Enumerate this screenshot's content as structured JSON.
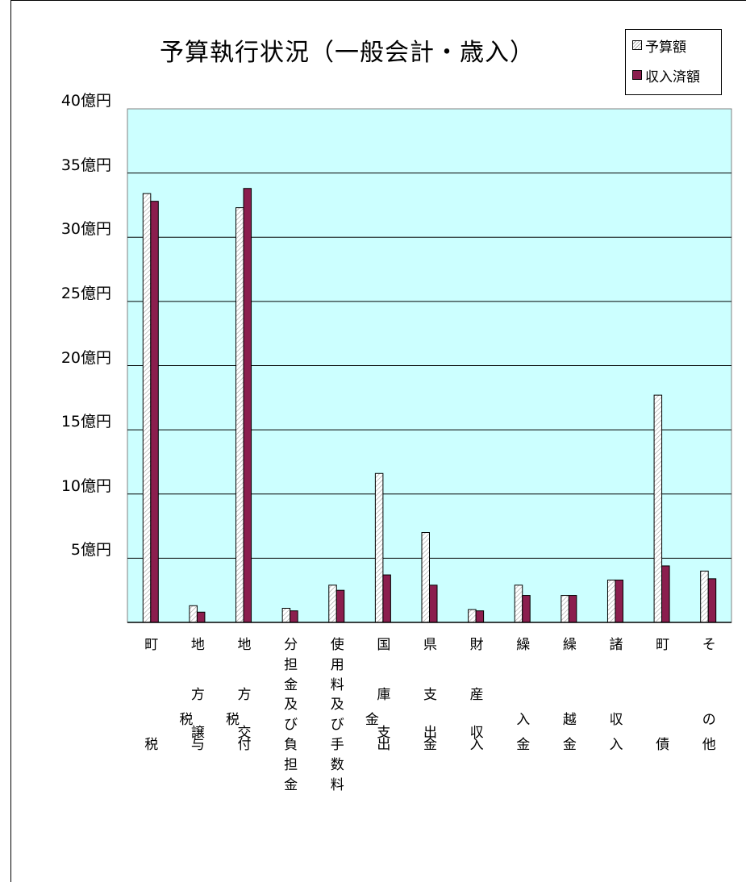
{
  "chart_data": {
    "type": "bar",
    "title": "予算執行状況（一般会計・歳入）",
    "legend": {
      "placement": "top-right"
    },
    "ylim": [
      0,
      40
    ],
    "yticks": [
      5,
      10,
      15,
      20,
      25,
      30,
      35,
      40
    ],
    "ytick_labels": [
      "5億円",
      "10億円",
      "15億円",
      "20億円",
      "25億円",
      "30億円",
      "35億円",
      "40億円"
    ],
    "grid": true,
    "colors": {
      "plot_bg": "#ccffff",
      "series0_hatch": "#a0a0a0",
      "series1_fill": "#8b1e4e"
    },
    "categories": [
      "町税",
      "地方譲与税",
      "地方交付税",
      "分担金及び負担金",
      "使用料及び手数料",
      "国庫支出金",
      "県支出金",
      "財産収入",
      "繰入金",
      "繰越金",
      "諸収入",
      "町債",
      "その他"
    ],
    "category_labels": [
      [
        [
          "町",
          0,
          0
        ],
        [
          "税",
          0,
          4
        ]
      ],
      [
        [
          "地",
          0,
          0
        ],
        [
          "方",
          0,
          2
        ],
        [
          "税",
          -0.5,
          3
        ],
        [
          "譲",
          0,
          3.5
        ],
        [
          "与",
          0,
          4
        ]
      ],
      [
        [
          "地",
          0,
          0
        ],
        [
          "方",
          0,
          2
        ],
        [
          "税",
          -0.5,
          3
        ],
        [
          "交",
          0,
          3.5
        ],
        [
          "付",
          0,
          4
        ]
      ],
      [
        [
          "分",
          0,
          0
        ],
        [
          "担",
          0,
          0.8
        ],
        [
          "金",
          0,
          1.6
        ],
        [
          "及",
          0,
          2.4
        ],
        [
          "び",
          0,
          3.2
        ],
        [
          "負",
          0,
          4
        ],
        [
          "担",
          0,
          4.8
        ],
        [
          "金",
          0,
          5.6
        ]
      ],
      [
        [
          "使",
          0,
          0
        ],
        [
          "用",
          0,
          0.8
        ],
        [
          "料",
          0,
          1.6
        ],
        [
          "及",
          0,
          2.4
        ],
        [
          "び",
          0,
          3.2
        ],
        [
          "手",
          0,
          4
        ],
        [
          "数",
          0,
          4.8
        ],
        [
          "料",
          0,
          5.6
        ]
      ],
      [
        [
          "国",
          0,
          0
        ],
        [
          "庫",
          0,
          2
        ],
        [
          "金",
          -0.5,
          3
        ],
        [
          "支",
          0,
          3.5
        ],
        [
          "出",
          0,
          4
        ]
      ],
      [
        [
          "県",
          0,
          0
        ],
        [
          "支",
          0,
          2
        ],
        [
          "出",
          0,
          3.5
        ],
        [
          "金",
          0,
          4
        ]
      ],
      [
        [
          "財",
          0,
          0
        ],
        [
          "産",
          0,
          2
        ],
        [
          "収",
          0,
          3.5
        ],
        [
          "入",
          0,
          4
        ]
      ],
      [
        [
          "繰",
          0,
          0
        ],
        [
          "入",
          0,
          3
        ],
        [
          "金",
          0,
          4
        ]
      ],
      [
        [
          "繰",
          0,
          0
        ],
        [
          "越",
          0,
          3
        ],
        [
          "金",
          0,
          4
        ]
      ],
      [
        [
          "諸",
          0,
          0
        ],
        [
          "収",
          0,
          3
        ],
        [
          "入",
          0,
          4
        ]
      ],
      [
        [
          "町",
          0,
          0
        ],
        [
          "債",
          0,
          4
        ]
      ],
      [
        [
          "そ",
          0,
          0
        ],
        [
          "の",
          0,
          3
        ],
        [
          "他",
          0,
          4
        ]
      ]
    ],
    "series": [
      {
        "name": "予算額",
        "values": [
          33.4,
          1.3,
          32.3,
          1.1,
          2.9,
          11.6,
          7.0,
          1.0,
          2.9,
          2.1,
          3.3,
          17.7,
          4.0
        ]
      },
      {
        "name": "収入済額",
        "values": [
          32.8,
          0.8,
          33.8,
          0.9,
          2.5,
          3.7,
          2.9,
          0.9,
          2.1,
          2.1,
          3.3,
          4.4,
          3.4
        ]
      }
    ]
  }
}
